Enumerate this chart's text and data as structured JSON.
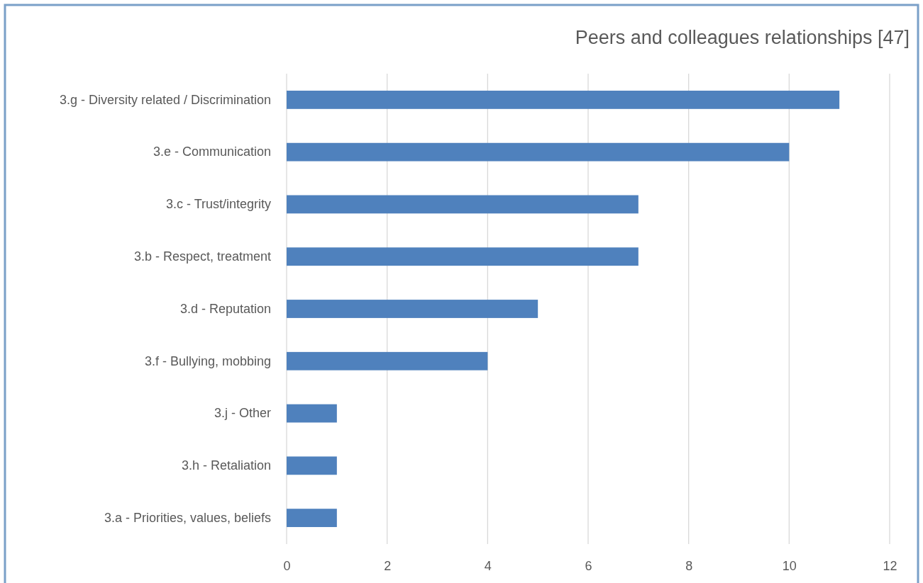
{
  "chart_data": {
    "type": "bar",
    "orientation": "horizontal",
    "title": "Peers and colleagues relationships [47]",
    "categories": [
      "3.g - Diversity related / Discrimination",
      "3.e - Communication",
      "3.c - Trust/integrity",
      "3.b - Respect, treatment",
      "3.d - Reputation",
      "3.f - Bullying, mobbing",
      "3.j - Other",
      "3.h - Retaliation",
      "3.a - Priorities, values, beliefs"
    ],
    "values": [
      11,
      10,
      7,
      7,
      5,
      4,
      1,
      1,
      1
    ],
    "color": "#4f81bd",
    "xlim": [
      0,
      12
    ],
    "xticks": [
      0,
      2,
      4,
      6,
      8,
      10,
      12
    ],
    "grid": "x"
  }
}
